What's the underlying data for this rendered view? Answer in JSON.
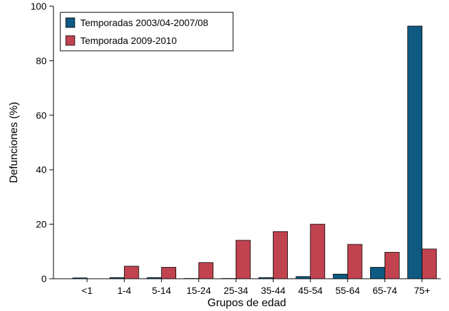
{
  "chart_data": {
    "type": "bar",
    "title": "",
    "xlabel": "Grupos de edad",
    "ylabel": "Defunciones (%)",
    "ylim": [
      0,
      100
    ],
    "yticks": [
      0,
      20,
      40,
      60,
      80,
      100
    ],
    "categories": [
      "<1",
      "1-4",
      "5-14",
      "15-24",
      "25-34",
      "35-44",
      "45-54",
      "55-64",
      "65-74",
      "75+"
    ],
    "series": [
      {
        "name": "Temporadas 2003/04-2007/08",
        "color": "#0f5a82",
        "values": [
          0.3,
          0.4,
          0.4,
          0.1,
          0.1,
          0.4,
          0.8,
          1.7,
          4.2,
          92.7
        ]
      },
      {
        "name": "Temporada 2009-2010",
        "color": "#c0434f",
        "values": [
          0,
          4.6,
          4.2,
          5.9,
          14.1,
          17.3,
          20.0,
          12.6,
          9.7,
          10.9
        ]
      }
    ],
    "legend_position": "top-left",
    "grid": false
  }
}
